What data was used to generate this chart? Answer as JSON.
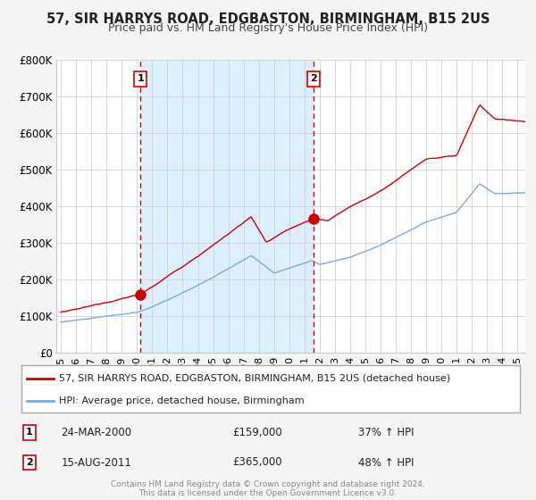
{
  "title": "57, SIR HARRYS ROAD, EDGBASTON, BIRMINGHAM, B15 2US",
  "subtitle": "Price paid vs. HM Land Registry's House Price Index (HPI)",
  "background_color": "#f5f5f5",
  "plot_bg_color": "#ffffff",
  "shaded_region_color": "#ddeeff",
  "grid_color": "#cccccc",
  "red_line_color": "#cc0000",
  "blue_line_color": "#7aaadd",
  "marker_color": "#cc0000",
  "vline_color": "#cc0000",
  "legend_border_color": "#aaaaaa",
  "ylim": [
    0,
    800000
  ],
  "yticks": [
    0,
    100000,
    200000,
    300000,
    400000,
    500000,
    600000,
    700000,
    800000
  ],
  "ytick_labels": [
    "£0",
    "£100K",
    "£200K",
    "£300K",
    "£400K",
    "£500K",
    "£600K",
    "£700K",
    "£800K"
  ],
  "xlim_start": 1994.7,
  "xlim_end": 2025.5,
  "xticks": [
    1995,
    1996,
    1997,
    1998,
    1999,
    2000,
    2001,
    2002,
    2003,
    2004,
    2005,
    2006,
    2007,
    2008,
    2009,
    2010,
    2011,
    2012,
    2013,
    2014,
    2015,
    2016,
    2017,
    2018,
    2019,
    2020,
    2021,
    2022,
    2023,
    2024,
    2025
  ],
  "sale1_x": 2000.22,
  "sale1_y": 159000,
  "sale1_label": "1",
  "sale1_date": "24-MAR-2000",
  "sale1_price": "£159,000",
  "sale1_hpi": "37% ↑ HPI",
  "sale2_x": 2011.62,
  "sale2_y": 365000,
  "sale2_label": "2",
  "sale2_date": "15-AUG-2011",
  "sale2_price": "£365,000",
  "sale2_hpi": "48% ↑ HPI",
  "legend_red_label": "57, SIR HARRYS ROAD, EDGBASTON, BIRMINGHAM, B15 2US (detached house)",
  "legend_blue_label": "HPI: Average price, detached house, Birmingham",
  "footer_text": "Contains HM Land Registry data © Crown copyright and database right 2024.\nThis data is licensed under the Open Government Licence v3.0.",
  "title_fontsize": 10.5,
  "subtitle_fontsize": 9
}
